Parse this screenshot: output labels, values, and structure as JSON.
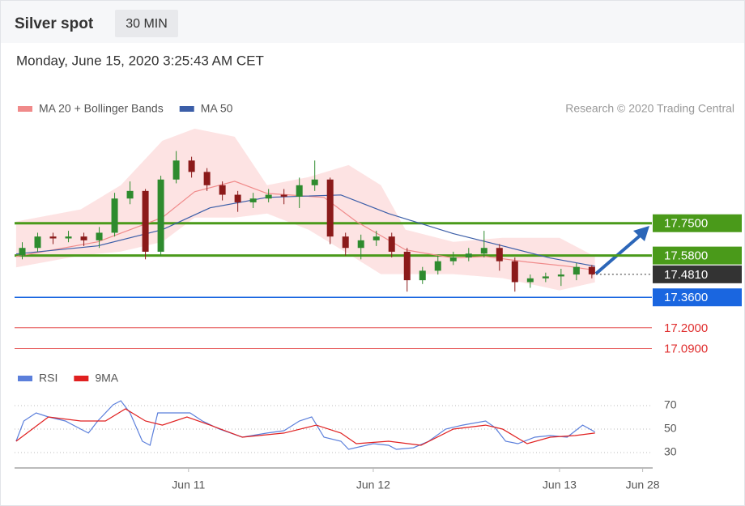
{
  "chart_data": {
    "type": "candlestick",
    "title": "Silver spot",
    "interval": "30 MIN",
    "subtitle": "Monday, June 15, 2020 3:25:43 AM CET",
    "source": "Research © 2020 Trading Central",
    "xlim": [
      0,
      41.4
    ],
    "xticks": [
      {
        "value": 11.3,
        "label": "Jun 11"
      },
      {
        "value": 23.3,
        "label": "Jun 12"
      },
      {
        "value": 35.4,
        "label": "Jun 13"
      },
      {
        "value": 40.8,
        "label": "Jun 28"
      }
    ],
    "ylim": [
      17.05,
      18.29
    ],
    "up_color": "#2e8b2e",
    "down_color": "#8b1a1a",
    "x": [
      0.5,
      1.5,
      2.5,
      3.5,
      4.5,
      5.5,
      6.5,
      7.5,
      8.5,
      9.5,
      10.5,
      11.5,
      12.5,
      13.5,
      14.5,
      15.5,
      16.5,
      17.5,
      18.5,
      19.5,
      20.5,
      21.5,
      22.5,
      23.5,
      24.5,
      25.5,
      26.5,
      27.5,
      28.5,
      29.5,
      30.5,
      31.5,
      32.5,
      33.5,
      34.5,
      35.5,
      36.5,
      37.5
    ],
    "open": [
      17.58,
      17.62,
      17.68,
      17.67,
      17.68,
      17.66,
      17.7,
      17.88,
      17.92,
      17.6,
      17.98,
      18.08,
      18.02,
      17.95,
      17.9,
      17.86,
      17.88,
      17.9,
      17.89,
      17.95,
      17.98,
      17.68,
      17.62,
      17.66,
      17.68,
      17.6,
      17.45,
      17.5,
      17.55,
      17.57,
      17.59,
      17.62,
      17.55,
      17.44,
      17.46,
      17.47,
      17.48,
      17.52
    ],
    "high": [
      17.65,
      17.7,
      17.7,
      17.71,
      17.7,
      17.73,
      17.91,
      17.97,
      17.93,
      18.0,
      18.13,
      18.1,
      18.04,
      17.97,
      17.92,
      17.91,
      17.93,
      17.93,
      17.99,
      18.08,
      17.99,
      17.7,
      17.69,
      17.71,
      17.7,
      17.62,
      17.52,
      17.58,
      17.6,
      17.62,
      17.71,
      17.64,
      17.57,
      17.48,
      17.49,
      17.51,
      17.54,
      17.53
    ],
    "low": [
      17.56,
      17.6,
      17.64,
      17.65,
      17.63,
      17.62,
      17.68,
      17.85,
      17.56,
      17.58,
      17.96,
      17.99,
      17.92,
      17.87,
      17.81,
      17.83,
      17.86,
      17.85,
      17.83,
      17.92,
      17.64,
      17.58,
      17.56,
      17.63,
      17.57,
      17.39,
      17.43,
      17.48,
      17.53,
      17.55,
      17.57,
      17.5,
      17.39,
      17.41,
      17.44,
      17.42,
      17.45,
      17.46
    ],
    "close": [
      17.62,
      17.68,
      17.67,
      17.68,
      17.66,
      17.7,
      17.88,
      17.92,
      17.6,
      17.98,
      18.08,
      18.02,
      17.95,
      17.9,
      17.86,
      17.88,
      17.9,
      17.89,
      17.95,
      17.98,
      17.68,
      17.62,
      17.66,
      17.68,
      17.6,
      17.45,
      17.5,
      17.55,
      17.57,
      17.59,
      17.62,
      17.55,
      17.44,
      17.46,
      17.47,
      17.48,
      17.52,
      17.481
    ],
    "bands": {
      "color": "#fde3e3",
      "x": [
        0.1,
        4.3,
        6.9,
        9.6,
        11.7,
        14.3,
        16.4,
        19.1,
        21.7,
        23.8,
        25.4,
        28.5,
        31.7,
        35.4,
        37.7
      ],
      "upper": [
        17.759,
        17.823,
        17.95,
        18.184,
        18.248,
        18.205,
        17.95,
        17.993,
        18.056,
        17.95,
        17.716,
        17.652,
        17.673,
        17.673,
        17.575
      ],
      "lower": [
        17.518,
        17.58,
        17.601,
        17.652,
        17.78,
        17.78,
        17.801,
        17.716,
        17.588,
        17.482,
        17.482,
        17.482,
        17.461,
        17.397,
        17.439
      ]
    },
    "overlays": [
      {
        "name": "MA 20 + Bollinger Bands",
        "color": "#f08a8a",
        "x": [
          0.1,
          5.4,
          9.6,
          11.7,
          14.3,
          16.4,
          20.1,
          22.2,
          25.4,
          28.5,
          30.6,
          33.3,
          35.9,
          37.7
        ],
        "values": [
          17.575,
          17.652,
          17.78,
          17.916,
          17.971,
          17.907,
          17.886,
          17.759,
          17.61,
          17.567,
          17.575,
          17.546,
          17.524,
          17.503
        ]
      },
      {
        "name": "MA 50",
        "color": "#3b5ea8",
        "x": [
          0.1,
          5.4,
          9.6,
          12.7,
          16.4,
          21.2,
          24.3,
          28.5,
          31.7,
          34.8,
          37.7
        ],
        "values": [
          17.588,
          17.631,
          17.716,
          17.831,
          17.886,
          17.899,
          17.801,
          17.695,
          17.631,
          17.567,
          17.524
        ]
      }
    ],
    "levels": [
      {
        "value": 17.75,
        "label": "17.7500",
        "color": "#4a9a1a",
        "style": "box"
      },
      {
        "value": 17.58,
        "label": "17.5800",
        "color": "#4a9a1a",
        "style": "box"
      },
      {
        "value": 17.481,
        "label": "17.4810",
        "color": "#333333",
        "style": "dotted"
      },
      {
        "value": 17.36,
        "label": "17.3600",
        "color": "#1a66e0",
        "style": "box"
      },
      {
        "value": 17.2,
        "label": "17.2000",
        "color": "#e03030",
        "style": "text"
      },
      {
        "value": 17.09,
        "label": "17.0900",
        "color": "#e03030",
        "style": "text"
      }
    ],
    "rsi": {
      "ylim": [
        19,
        81
      ],
      "yticks": [
        30,
        50,
        70
      ],
      "series": [
        {
          "name": "RSI",
          "color": "#5b7fdb",
          "x": [
            0.1,
            0.6,
            1.4,
            2.2,
            3.3,
            4.3,
            4.8,
            5.4,
            6.4,
            6.9,
            7.5,
            8.3,
            8.8,
            9.3,
            10.4,
            11.4,
            12.2,
            13.3,
            14.8,
            16.4,
            17.5,
            18.5,
            19.3,
            20.1,
            21.2,
            21.7,
            23.3,
            24.3,
            24.8,
            25.9,
            26.9,
            28.0,
            29.1,
            30.6,
            31.2,
            31.9,
            32.7,
            33.8,
            34.8,
            35.9,
            36.9,
            37.7
          ],
          "values": [
            39.7,
            56.9,
            63.8,
            60.3,
            56.9,
            50,
            46.6,
            56.9,
            70.7,
            74.1,
            63.8,
            39.7,
            36.2,
            63.8,
            63.8,
            63.8,
            56.9,
            50,
            43.1,
            46.6,
            48.6,
            56.9,
            60.3,
            43.1,
            39.7,
            32.8,
            37.6,
            36.2,
            32.8,
            34.1,
            39.7,
            50,
            53.4,
            56.9,
            51.4,
            39.7,
            37.6,
            43.1,
            44.5,
            43.1,
            53.4,
            47.6
          ]
        },
        {
          "name": "9MA",
          "color": "#e02020",
          "x": [
            0.1,
            2.2,
            4.3,
            5.9,
            7.2,
            8.5,
            9.6,
            11.2,
            12.7,
            14.8,
            17.5,
            19.6,
            21.2,
            22.2,
            24.3,
            26.4,
            28.5,
            30.6,
            31.7,
            33.3,
            34.8,
            36.4,
            37.7
          ],
          "values": [
            39.7,
            60.3,
            56.9,
            56.9,
            67.2,
            56.9,
            53.4,
            60.3,
            53.4,
            43.1,
            46.6,
            53.4,
            46.6,
            37.6,
            39.7,
            36.2,
            50,
            53.4,
            50,
            37.6,
            43.1,
            44.5,
            46.6
          ]
        }
      ]
    }
  }
}
